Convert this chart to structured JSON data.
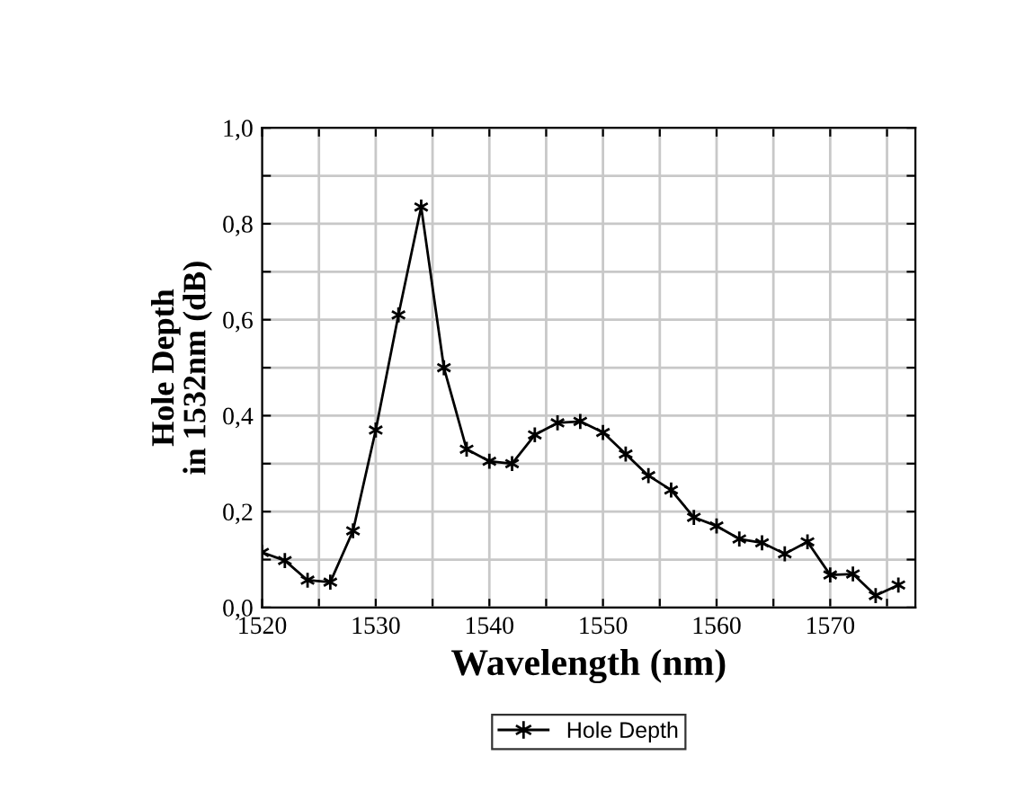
{
  "chart_data": {
    "type": "line",
    "xlabel": "Wavelength (nm)",
    "ylabel": "Hole Depth\nin 1532nm (dB)",
    "x": [
      1520,
      1522,
      1524,
      1526,
      1528,
      1530,
      1532,
      1534,
      1536,
      1538,
      1540,
      1542,
      1544,
      1546,
      1548,
      1550,
      1552,
      1554,
      1556,
      1558,
      1560,
      1562,
      1564,
      1566,
      1568,
      1570,
      1572,
      1574,
      1576
    ],
    "series": [
      {
        "name": "Hole Depth",
        "color": "#000000",
        "values": [
          0.115,
          0.098,
          0.057,
          0.053,
          0.16,
          0.37,
          0.61,
          0.835,
          0.5,
          0.33,
          0.305,
          0.3,
          0.36,
          0.385,
          0.388,
          0.365,
          0.32,
          0.275,
          0.245,
          0.188,
          0.17,
          0.143,
          0.135,
          0.112,
          0.137,
          0.068,
          0.07,
          0.025,
          0.047
        ]
      }
    ],
    "xlim": [
      1520,
      1577.5
    ],
    "xticks": [
      1520,
      {
        "value": 1525,
        "label": null
      },
      1530,
      {
        "value": 1535,
        "label": null
      },
      1540,
      {
        "value": 1545,
        "label": null
      },
      1550,
      {
        "value": 1555,
        "label": null
      },
      1560,
      {
        "value": 1565,
        "label": null
      },
      1570,
      {
        "value": 1575,
        "label": null
      }
    ],
    "ylim": [
      0,
      1.0
    ],
    "yticks": [
      {
        "value": 0,
        "label": "0,0"
      },
      {
        "value": 0.1,
        "label": null
      },
      {
        "value": 0.2,
        "label": "0,2"
      },
      {
        "value": 0.3,
        "label": null
      },
      {
        "value": 0.4,
        "label": "0,4"
      },
      {
        "value": 0.5,
        "label": null
      },
      {
        "value": 0.6,
        "label": "0,6"
      },
      {
        "value": 0.7,
        "label": null
      },
      {
        "value": 0.8,
        "label": "0,8"
      },
      {
        "value": 0.9,
        "label": null
      },
      {
        "value": 1.0,
        "label": "1,0"
      }
    ],
    "grid": true,
    "legend": "bottom",
    "marker": "cross",
    "line_style": "solid"
  }
}
